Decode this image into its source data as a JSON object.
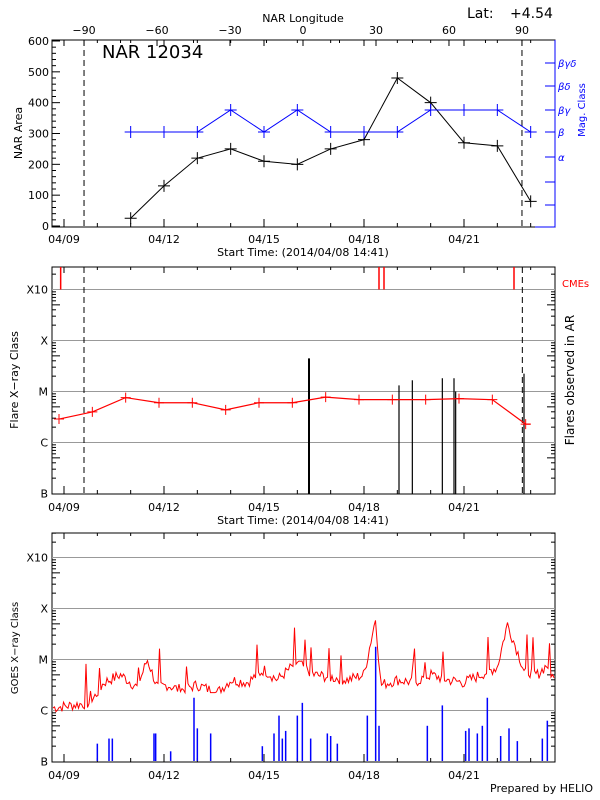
{
  "colors": {
    "nar_area": "#000000",
    "mag_class": "#0000ff",
    "flare_line": "#ff0000",
    "cme": "#ff0000",
    "goes_long": "#ff0000",
    "goes_short": "#0000ff",
    "grid": "#999999"
  },
  "footer": "Prepared by HELIO",
  "chart_data": [
    {
      "type": "line",
      "title": "NAR 12034",
      "lat_label": "Lat:",
      "lat_value": "+4.54",
      "top_axis_label": "NAR Longitude",
      "top_ticks": [
        -90,
        -60,
        -30,
        0,
        30,
        60,
        90
      ],
      "top_tick_labels": [
        "−90",
        "−60",
        "−30",
        "0",
        "30",
        "60",
        "90"
      ],
      "xlabel": "Start Time: (2014/04/08 14:41)",
      "x_tick_labels": [
        "04/09",
        "04/12",
        "04/15",
        "04/18",
        "04/21"
      ],
      "x_tick_days": [
        0,
        3,
        6,
        9,
        12
      ],
      "xlim_days": [
        -0.36,
        14.73
      ],
      "ylabel": "NAR Area",
      "ylim": [
        0,
        600
      ],
      "y_ticks": [
        0,
        100,
        200,
        300,
        400,
        500,
        600
      ],
      "right_ylabel": "Mag. Class",
      "mag_classes": [
        "α",
        "β",
        "βγ",
        "βδ",
        "βγδ"
      ],
      "limb_longitudes": [
        -90,
        90
      ],
      "series": [
        {
          "name": "NAR Area",
          "x_days": [
            2,
            3,
            4,
            5,
            6,
            7,
            8,
            9,
            10,
            11,
            12,
            13,
            14
          ],
          "values": [
            25,
            130,
            220,
            250,
            210,
            200,
            250,
            280,
            480,
            400,
            270,
            260,
            80
          ]
        },
        {
          "name": "Mag. Class",
          "x_days": [
            2,
            3,
            4,
            5,
            6,
            7,
            8,
            9,
            10,
            11,
            12,
            13,
            14
          ],
          "values": [
            "β",
            "β",
            "β",
            "βγ",
            "β",
            "βγ",
            "β",
            "β",
            "β",
            "βγ",
            "βγ",
            "βγ",
            "β"
          ]
        }
      ]
    },
    {
      "type": "line",
      "xlabel": "Start Time: (2014/04/08 14:41)",
      "x_tick_labels": [
        "04/09",
        "04/12",
        "04/15",
        "04/18",
        "04/21"
      ],
      "x_tick_days": [
        0,
        3,
        6,
        9,
        12
      ],
      "ylabel": "Flare X−ray Class",
      "right_ylabel": "Flares observed in AR",
      "cme_label": "CMEs",
      "y_levels": [
        "B",
        "C",
        "M",
        "X",
        "X10"
      ],
      "series": [
        {
          "name": "Background",
          "x_days": [
            -0.15,
            0.85,
            1.85,
            2.85,
            3.85,
            4.85,
            5.85,
            6.85,
            7.85,
            8.85,
            9.85,
            10.85,
            11.85,
            12.85,
            13.85,
            14.0
          ],
          "values": [
            1.46,
            1.6,
            1.88,
            1.78,
            1.78,
            1.64,
            1.78,
            1.78,
            1.89,
            1.84,
            1.84,
            1.84,
            1.86,
            1.84,
            1.36,
            1.36
          ]
        }
      ],
      "flares": {
        "x_days": [
          7.35,
          10.05,
          10.45,
          11.35,
          11.7,
          11.75,
          13.8
        ],
        "values": [
          2.65,
          2.12,
          2.22,
          2.26,
          2.26,
          2.0,
          2.35
        ]
      },
      "cmes_x_days": [
        -0.1,
        9.45,
        9.6,
        13.5
      ],
      "limb_days": [
        0.6,
        13.75
      ]
    },
    {
      "type": "line",
      "xlabel": "",
      "x_tick_labels": [
        "04/09",
        "04/12",
        "04/15",
        "04/18",
        "04/21"
      ],
      "x_tick_days": [
        0,
        3,
        6,
        9,
        12
      ],
      "ylabel": "GOES X−ray Class",
      "y_levels": [
        "B",
        "C",
        "M",
        "X",
        "X10"
      ],
      "series": [
        {
          "name": "GOES 1-8 Å",
          "keypoints_days": [
            -0.36,
            0.2,
            0.8,
            1.0,
            1.2,
            1.7,
            2.2,
            2.5,
            2.8,
            3.1,
            3.5,
            4.0,
            4.6,
            5.0,
            5.5,
            6.0,
            6.4,
            7.0,
            7.5,
            8.0,
            8.5,
            9.0,
            9.35,
            9.5,
            10.0,
            10.5,
            11.0,
            11.5,
            12.0,
            12.5,
            13.0,
            13.3,
            13.8,
            14.2,
            14.5,
            14.73
          ],
          "keypoints_values": [
            1.05,
            1.1,
            1.15,
            1.35,
            1.55,
            1.7,
            1.45,
            2.0,
            1.45,
            1.5,
            1.4,
            1.5,
            1.35,
            1.6,
            1.55,
            1.8,
            1.6,
            1.95,
            1.7,
            1.65,
            1.6,
            1.7,
            2.82,
            1.5,
            1.6,
            1.55,
            1.7,
            1.6,
            1.55,
            1.7,
            1.85,
            2.7,
            1.8,
            1.7,
            1.9,
            1.55
          ]
        },
        {
          "name": "GOES 0.5-4 Å",
          "spikes_days": [
            1.0,
            1.35,
            1.45,
            2.7,
            2.75,
            3.2,
            3.9,
            4.0,
            4.4,
            5.95,
            6.3,
            6.45,
            6.55,
            6.65,
            7.0,
            7.15,
            7.4,
            7.9,
            8.0,
            8.2,
            9.1,
            9.35,
            9.45,
            10.9,
            11.35,
            12.05,
            12.15,
            12.4,
            12.55,
            12.7,
            13.1,
            13.35,
            13.6,
            14.35,
            14.5
          ],
          "spikes_values": [
            0.35,
            0.45,
            0.45,
            0.55,
            0.55,
            0.2,
            1.25,
            0.65,
            0.55,
            0.3,
            0.55,
            0.9,
            0.45,
            0.6,
            0.9,
            1.15,
            0.45,
            0.55,
            0.5,
            0.35,
            0.9,
            2.25,
            0.7,
            0.7,
            1.1,
            0.6,
            0.65,
            0.55,
            0.7,
            1.25,
            0.5,
            0.65,
            0.4,
            0.45,
            0.8
          ]
        }
      ]
    }
  ]
}
